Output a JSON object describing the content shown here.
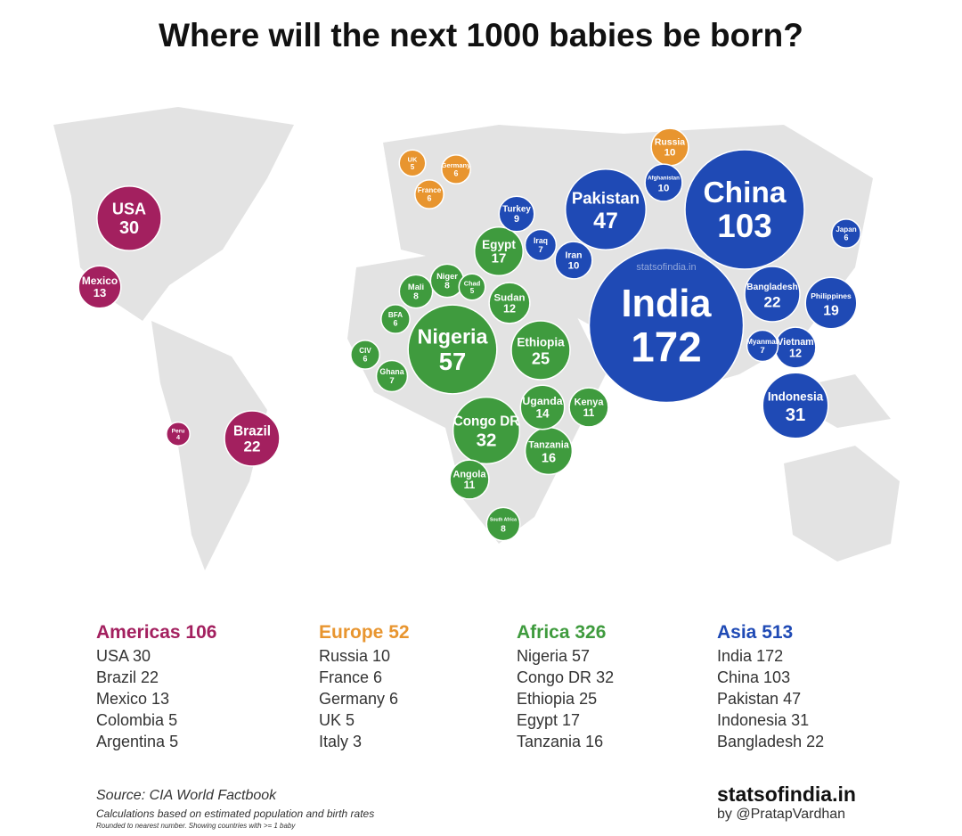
{
  "title": "Where will the next 1000 babies be born?",
  "watermark": "statsofindia.in",
  "regions": [
    {
      "name": "Americas",
      "total": 106,
      "color": "#a3205f",
      "items": [
        {
          "name": "USA",
          "value": 30
        },
        {
          "name": "Brazil",
          "value": 22
        },
        {
          "name": "Mexico",
          "value": 13
        },
        {
          "name": "Colombia",
          "value": 5
        },
        {
          "name": "Argentina",
          "value": 5
        }
      ],
      "bubbles": [
        {
          "label": "USA",
          "value": 30
        },
        {
          "label": "Mexico",
          "value": 13
        },
        {
          "label": "Brazil",
          "value": 22
        },
        {
          "label": "Peru",
          "value": 4
        }
      ]
    },
    {
      "name": "Europe",
      "total": 52,
      "color": "#e8952f",
      "items": [
        {
          "name": "Russia",
          "value": 10
        },
        {
          "name": "France",
          "value": 6
        },
        {
          "name": "Germany",
          "value": 6
        },
        {
          "name": "UK",
          "value": 5
        },
        {
          "name": "Italy",
          "value": 3
        }
      ],
      "bubbles": [
        {
          "label": "UK",
          "value": 5
        },
        {
          "label": "France",
          "value": 6
        },
        {
          "label": "Germany",
          "value": 6
        },
        {
          "label": "Russia",
          "value": 10
        }
      ]
    },
    {
      "name": "Africa",
      "total": 326,
      "color": "#3f9b3e",
      "items": [
        {
          "name": "Nigeria",
          "value": 57
        },
        {
          "name": "Congo DR",
          "value": 32
        },
        {
          "name": "Ethiopia",
          "value": 25
        },
        {
          "name": "Egypt",
          "value": 17
        },
        {
          "name": "Tanzania",
          "value": 16
        }
      ],
      "bubbles": [
        {
          "label": "Nigeria",
          "value": 57
        },
        {
          "label": "Congo DR",
          "value": 32
        },
        {
          "label": "Ethiopia",
          "value": 25
        },
        {
          "label": "Egypt",
          "value": 17
        },
        {
          "label": "Tanzania",
          "value": 16
        },
        {
          "label": "Sudan",
          "value": 12
        },
        {
          "label": "Uganda",
          "value": 14
        },
        {
          "label": "Kenya",
          "value": 11
        },
        {
          "label": "Angola",
          "value": 11
        },
        {
          "label": "South Africa",
          "value": 8
        },
        {
          "label": "Mali",
          "value": 8
        },
        {
          "label": "Niger",
          "value": 8
        },
        {
          "label": "Ghana",
          "value": 7
        },
        {
          "label": "CIV",
          "value": 6
        },
        {
          "label": "BFA",
          "value": 6
        },
        {
          "label": "Chad",
          "value": 5
        }
      ]
    },
    {
      "name": "Asia",
      "total": 513,
      "color": "#1f4ab5",
      "items": [
        {
          "name": "India",
          "value": 172
        },
        {
          "name": "China",
          "value": 103
        },
        {
          "name": "Pakistan",
          "value": 47
        },
        {
          "name": "Indonesia",
          "value": 31
        },
        {
          "name": "Bangladesh",
          "value": 22
        }
      ],
      "bubbles": [
        {
          "label": "India",
          "value": 172
        },
        {
          "label": "China",
          "value": 103
        },
        {
          "label": "Pakistan",
          "value": 47
        },
        {
          "label": "Indonesia",
          "value": 31
        },
        {
          "label": "Bangladesh",
          "value": 22
        },
        {
          "label": "Philippines",
          "value": 19
        },
        {
          "label": "Iran",
          "value": 10
        },
        {
          "label": "Vietnam",
          "value": 12
        },
        {
          "label": "Turkey",
          "value": 9
        },
        {
          "label": "Iraq",
          "value": 7
        },
        {
          "label": "Myanmar",
          "value": 7
        },
        {
          "label": "Japan",
          "value": 6
        },
        {
          "label": "Afghanistan",
          "value": 10
        }
      ]
    }
  ],
  "footer": {
    "source": "Source: CIA World Factbook",
    "note": "Calculations based on estimated population and birth rates",
    "small_note": "Rounded to nearest number. Showing countries with >= 1 baby",
    "brand": "statsofindia.in",
    "byline": "by @PratapVardhan"
  }
}
